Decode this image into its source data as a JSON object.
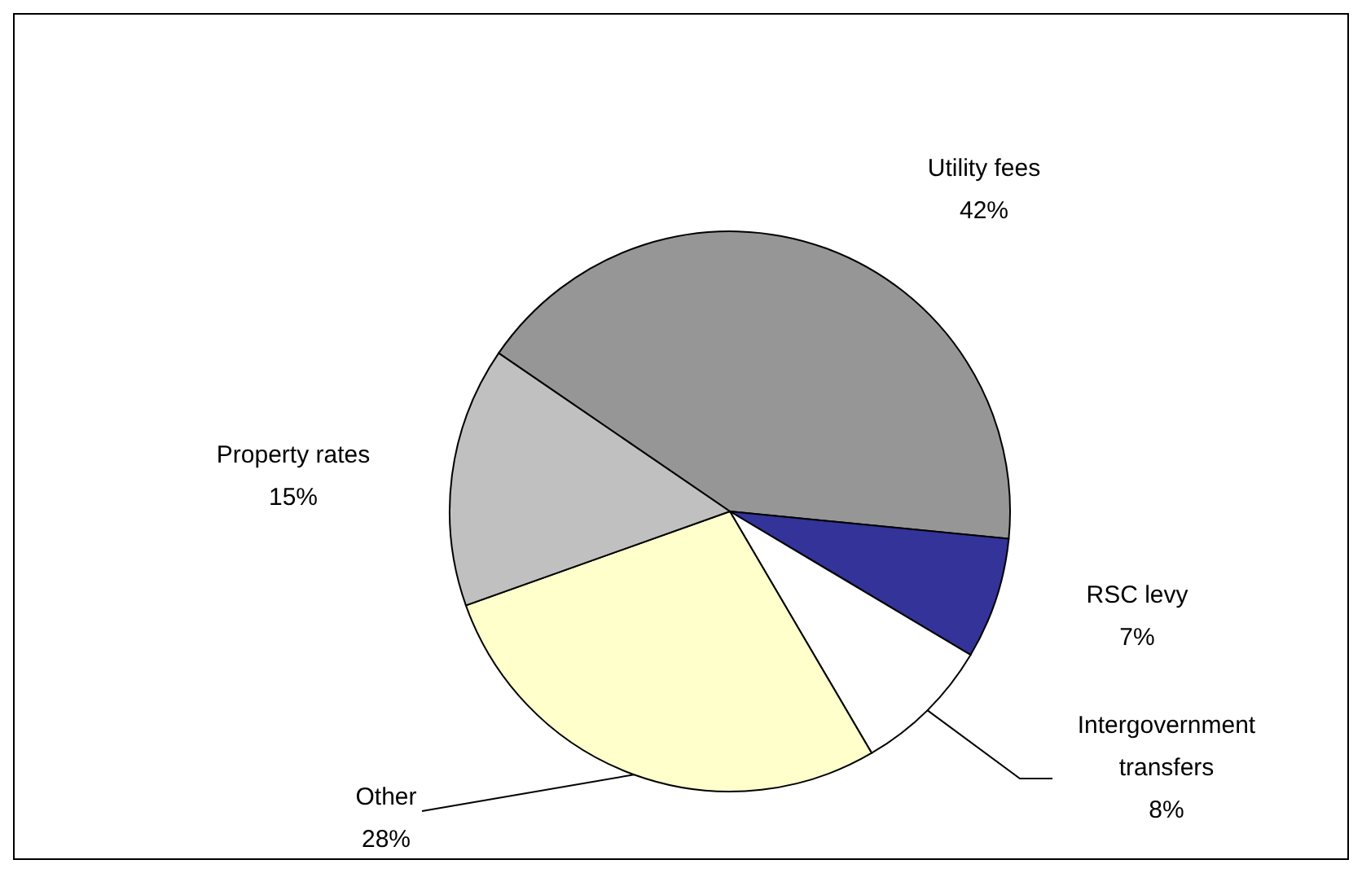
{
  "chart_data": {
    "type": "pie",
    "categories": [
      "Utility fees",
      "RSC levy",
      "Intergovernment transfers",
      "Other",
      "Property rates"
    ],
    "values": [
      42,
      7,
      8,
      28,
      15
    ],
    "value_labels": [
      "42%",
      "7%",
      "8%",
      "28%",
      "15%"
    ],
    "colors": [
      "#969696",
      "#333399",
      "#ffffff",
      "#ffffcc",
      "#c0c0c0"
    ],
    "data_labels": true
  }
}
